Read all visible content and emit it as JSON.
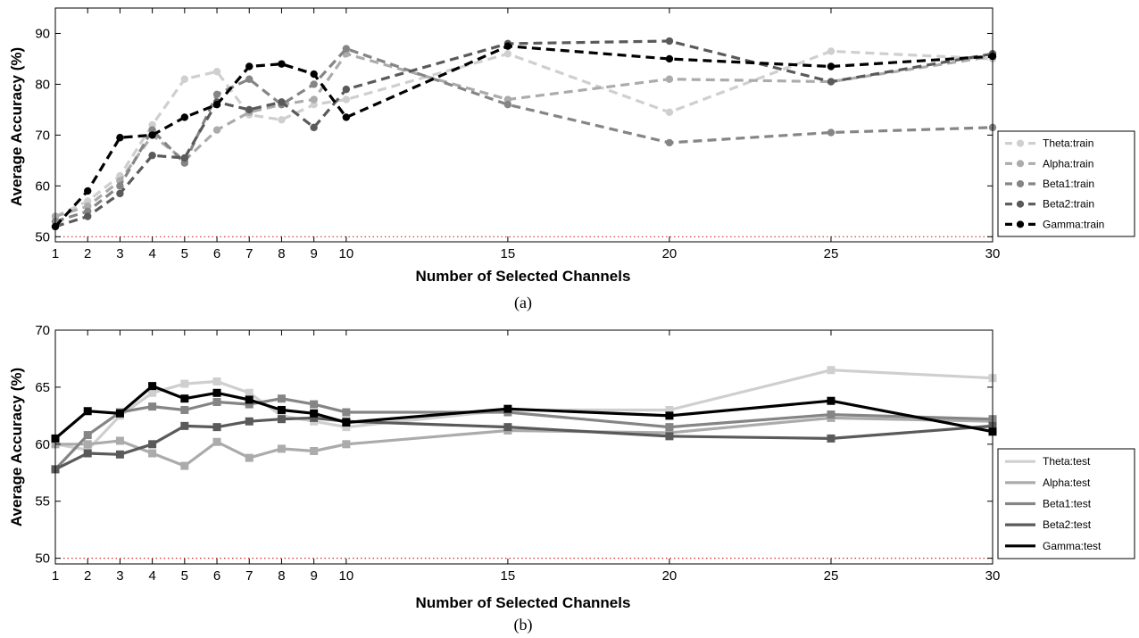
{
  "chart_data": [
    {
      "type": "line",
      "caption": "(a)",
      "xlabel": "Number of Selected Channels",
      "ylabel": "Average Accuracy (%)",
      "x": [
        1,
        2,
        3,
        4,
        5,
        6,
        7,
        8,
        9,
        10,
        15,
        20,
        25,
        30
      ],
      "xlim": [
        1,
        30
      ],
      "ylim": [
        49,
        95
      ],
      "yticks": [
        50,
        60,
        70,
        80,
        90
      ],
      "chance_level": 50,
      "legend_position": "right",
      "line_style": "dashed",
      "series": [
        {
          "name": "Theta:train",
          "color": "#cfcfcf",
          "values": [
            54,
            57,
            62,
            72,
            81,
            82.5,
            74,
            73,
            76,
            77,
            86,
            74.5,
            86.5,
            85
          ]
        },
        {
          "name": "Alpha:train",
          "color": "#ababab",
          "values": [
            54,
            56,
            61,
            70,
            65,
            71,
            74.5,
            76,
            77,
            86,
            77,
            81,
            80.5,
            85.5
          ]
        },
        {
          "name": "Beta1:train",
          "color": "#858585",
          "values": [
            53,
            55,
            60,
            71,
            64.5,
            78,
            81,
            76,
            80,
            87,
            76,
            68.5,
            70.5,
            71.5
          ]
        },
        {
          "name": "Beta2:train",
          "color": "#5a5a5a",
          "values": [
            52,
            54,
            58.5,
            66,
            65.5,
            76.5,
            75,
            76.5,
            71.5,
            79,
            88,
            88.5,
            80.5,
            86
          ]
        },
        {
          "name": "Gamma:train",
          "color": "#000000",
          "values": [
            52,
            59,
            69.5,
            70,
            73.5,
            76,
            83.5,
            84,
            82,
            73.5,
            87.5,
            85,
            83.5,
            85.5
          ]
        }
      ]
    },
    {
      "type": "line",
      "caption": "(b)",
      "xlabel": "Number of Selected Channels",
      "ylabel": "Average Accuracy (%)",
      "x": [
        1,
        2,
        3,
        4,
        5,
        6,
        7,
        8,
        9,
        10,
        15,
        20,
        25,
        30
      ],
      "xlim": [
        1,
        30
      ],
      "ylim": [
        49.5,
        70
      ],
      "yticks": [
        50,
        55,
        60,
        65,
        70
      ],
      "chance_level": 50,
      "legend_position": "right",
      "line_style": "solid",
      "series": [
        {
          "name": "Theta:test",
          "color": "#cfcfcf",
          "values": [
            60,
            59.5,
            62.5,
            64.5,
            65.3,
            65.5,
            64.5,
            62.5,
            62,
            61.5,
            63,
            63,
            66.5,
            65.8
          ]
        },
        {
          "name": "Alpha:test",
          "color": "#ababab",
          "values": [
            60,
            60,
            60.3,
            59.2,
            58.1,
            60.2,
            58.8,
            59.6,
            59.4,
            60,
            61.2,
            61,
            62.3,
            62
          ]
        },
        {
          "name": "Beta1:test",
          "color": "#858585",
          "values": [
            57.8,
            60.8,
            62.8,
            63.3,
            63,
            63.7,
            63.5,
            64,
            63.5,
            62.8,
            62.8,
            61.5,
            62.6,
            62.2
          ]
        },
        {
          "name": "Beta2:test",
          "color": "#5a5a5a",
          "values": [
            57.8,
            59.2,
            59.1,
            60,
            61.6,
            61.5,
            62,
            62.2,
            62.3,
            62,
            61.5,
            60.7,
            60.5,
            61.6
          ]
        },
        {
          "name": "Gamma:test",
          "color": "#000000",
          "values": [
            60.5,
            62.9,
            62.7,
            65.1,
            64,
            64.5,
            63.9,
            63,
            62.7,
            61.9,
            63.1,
            62.5,
            63.8,
            61.1
          ]
        }
      ]
    }
  ]
}
